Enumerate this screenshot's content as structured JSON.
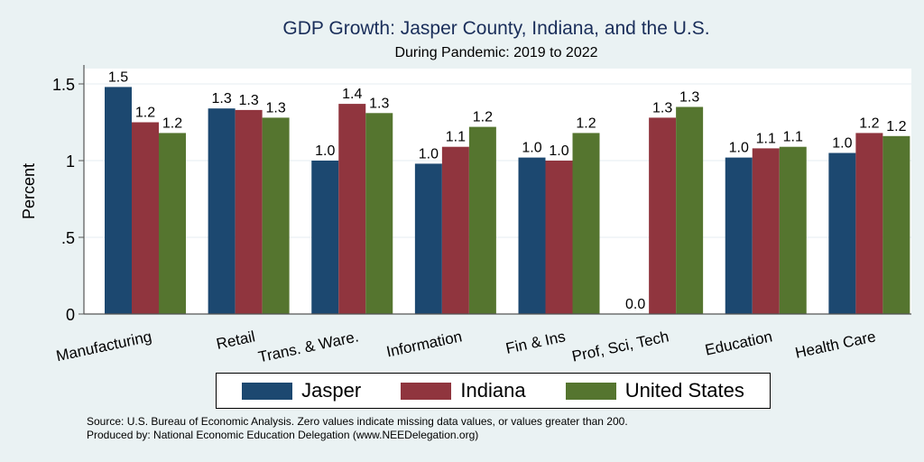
{
  "chart_data": {
    "type": "bar",
    "title": "GDP Growth: Jasper County, Indiana, and the U.S.",
    "subtitle": "During Pandemic: 2019 to 2022",
    "xlabel": "",
    "ylabel": "Percent",
    "ylim": [
      0,
      1.6
    ],
    "yticks": [
      0,
      0.5,
      1,
      1.5
    ],
    "ytick_labels": [
      "0",
      ".5",
      "1",
      "1.5"
    ],
    "grid": true,
    "legend_position": "bottom",
    "categories": [
      "Manufacturing",
      "Retail",
      "Trans. & Ware.",
      "Information",
      "Fin & Ins",
      "Prof, Sci, Tech",
      "Education",
      "Health Care"
    ],
    "series": [
      {
        "name": "Jasper",
        "color": "#1c4870",
        "values": [
          1.48,
          1.34,
          1.0,
          0.98,
          1.02,
          0.0,
          1.02,
          1.05
        ],
        "labels": [
          "1.5",
          "1.3",
          "1.0",
          "1.0",
          "1.0",
          "0.0",
          "1.0",
          "1.0"
        ]
      },
      {
        "name": "Indiana",
        "color": "#90353e",
        "values": [
          1.25,
          1.33,
          1.37,
          1.09,
          1.0,
          1.28,
          1.08,
          1.18
        ],
        "labels": [
          "1.2",
          "1.3",
          "1.4",
          "1.1",
          "1.0",
          "1.3",
          "1.1",
          "1.2"
        ]
      },
      {
        "name": "United States",
        "color": "#55752f",
        "values": [
          1.18,
          1.28,
          1.31,
          1.22,
          1.18,
          1.35,
          1.09,
          1.16
        ],
        "labels": [
          "1.2",
          "1.3",
          "1.3",
          "1.2",
          "1.2",
          "1.3",
          "1.1",
          "1.2"
        ]
      }
    ]
  },
  "footer": {
    "source": "Source: U.S. Bureau of Economic Analysis. Zero values indicate missing data values, or values greater than 200.",
    "produced": "Produced by: National Economic Education Delegation (www.NEEDelegation.org)"
  }
}
